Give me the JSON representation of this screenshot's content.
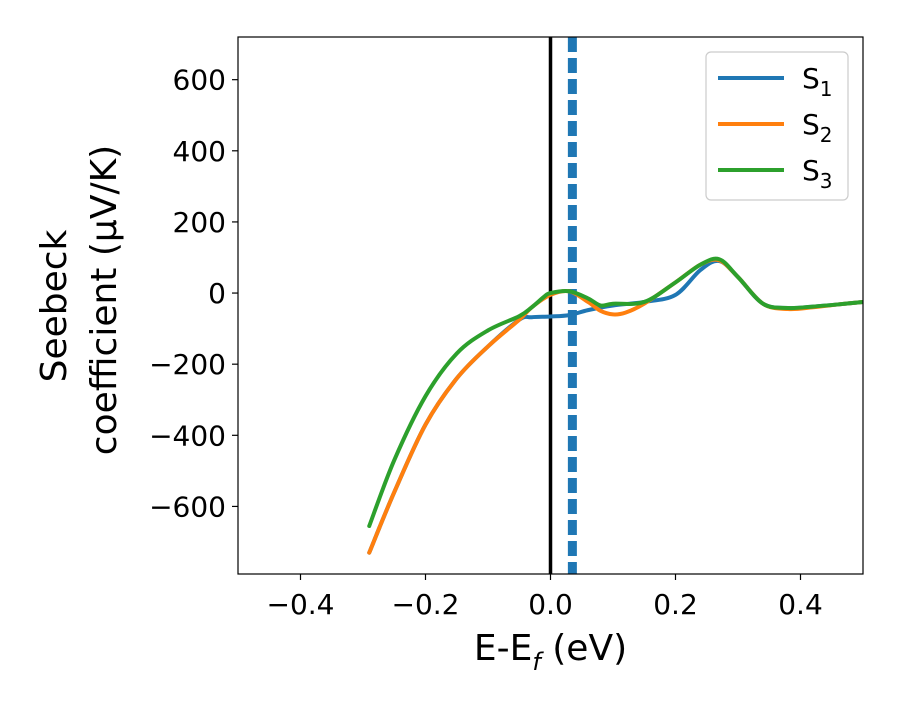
{
  "chart_data": {
    "type": "line",
    "xlabel": {
      "main": "E-E",
      "sub": "f",
      "tail": " (eV)"
    },
    "ylabel_lines": [
      "Seebeck",
      "coefficient  (μV/K)"
    ],
    "xlim": [
      -0.5,
      0.5
    ],
    "ylim": [
      -790,
      720
    ],
    "xticks": [
      -0.4,
      -0.2,
      0.0,
      0.2,
      0.4
    ],
    "xtick_labels": [
      "−0.4",
      "−0.2",
      "0.0",
      "0.2",
      "0.4"
    ],
    "yticks": [
      -600,
      -400,
      -200,
      0,
      200,
      400,
      600
    ],
    "ytick_labels": [
      "−600",
      "−400",
      "−200",
      "0",
      "200",
      "400",
      "600"
    ],
    "grid": false,
    "legend_position": "top-right",
    "vlines": [
      {
        "x": 0.0,
        "style": "solid",
        "color": "#000000"
      },
      {
        "x": 0.035,
        "style": "dashed",
        "color": "#1f77b4"
      }
    ],
    "series": [
      {
        "name": "S",
        "sub": "1",
        "color": "#1f77b4",
        "x": [
          -0.29,
          -0.25,
          -0.2,
          -0.15,
          -0.1,
          -0.05,
          -0.03,
          0.0,
          0.03,
          0.06,
          0.1,
          0.15,
          0.2,
          0.24,
          0.27,
          0.3,
          0.34,
          0.38,
          0.42,
          0.46,
          0.5
        ],
        "y": [
          -730,
          -560,
          -370,
          -240,
          -150,
          -75,
          -68,
          -66,
          -62,
          -48,
          -35,
          -25,
          -5,
          65,
          90,
          45,
          -30,
          -42,
          -38,
          -32,
          -25
        ]
      },
      {
        "name": "S",
        "sub": "2",
        "color": "#ff7f0e",
        "x": [
          -0.29,
          -0.25,
          -0.2,
          -0.15,
          -0.1,
          -0.05,
          -0.03,
          0.0,
          0.03,
          0.06,
          0.08,
          0.1,
          0.12,
          0.15,
          0.2,
          0.24,
          0.27,
          0.3,
          0.34,
          0.38,
          0.42,
          0.46,
          0.5
        ],
        "y": [
          -730,
          -560,
          -370,
          -240,
          -150,
          -75,
          -40,
          -5,
          5,
          -25,
          -50,
          -60,
          -55,
          -30,
          30,
          80,
          92,
          45,
          -30,
          -45,
          -40,
          -32,
          -25
        ]
      },
      {
        "name": "S",
        "sub": "3",
        "color": "#2ca02c",
        "x": [
          -0.29,
          -0.25,
          -0.2,
          -0.15,
          -0.1,
          -0.05,
          -0.03,
          -0.01,
          0.0,
          0.03,
          0.06,
          0.08,
          0.1,
          0.15,
          0.2,
          0.24,
          0.27,
          0.3,
          0.34,
          0.38,
          0.42,
          0.46,
          0.5
        ],
        "y": [
          -655,
          -470,
          -290,
          -170,
          -105,
          -65,
          -40,
          -10,
          0,
          5,
          -15,
          -35,
          -30,
          -25,
          30,
          80,
          95,
          45,
          -30,
          -42,
          -38,
          -32,
          -25
        ]
      }
    ]
  }
}
